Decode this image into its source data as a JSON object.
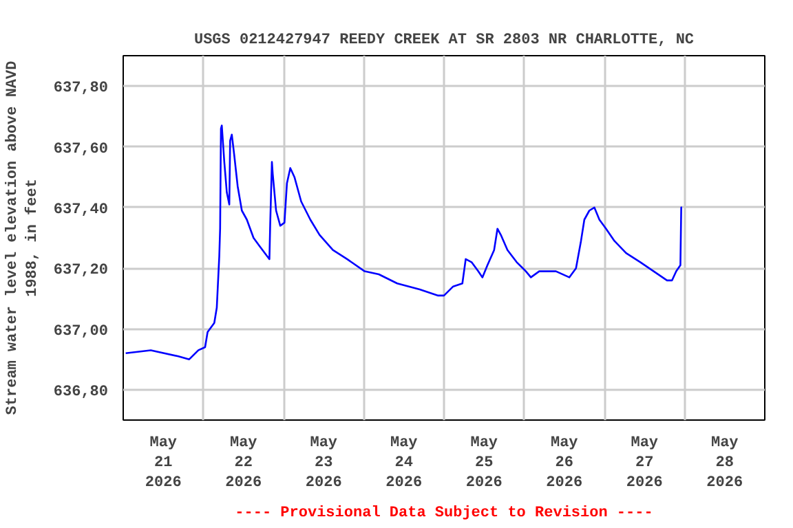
{
  "chart_data": {
    "type": "line",
    "title": "USGS 0212427947 REEDY CREEK AT SR 2803 NR CHARLOTTE, NC",
    "ylabel": "Stream water level elevation above NAVD 1988, in feet",
    "annotations": [
      "---- Provisional Data Subject to Revision ----"
    ],
    "series": [
      {
        "color": "#0000ff",
        "x": [
          "2026-05-21T00:45",
          "2026-05-21T08:15",
          "2026-05-21T16:30",
          "2026-05-21T19:45",
          "2026-05-21T22:30",
          "2026-05-22T00:30",
          "2026-05-22T01:15",
          "2026-05-22T03:15",
          "2026-05-22T04:00",
          "2026-05-22T04:45",
          "2026-05-22T05:00",
          "2026-05-22T05:15",
          "2026-05-22T05:30",
          "2026-05-22T06:15",
          "2026-05-22T07:00",
          "2026-05-22T07:45",
          "2026-05-22T08:00",
          "2026-05-22T08:30",
          "2026-05-22T09:15",
          "2026-05-22T10:15",
          "2026-05-22T11:30",
          "2026-05-22T13:00",
          "2026-05-22T15:00",
          "2026-05-22T17:00",
          "2026-05-22T19:45",
          "2026-05-22T20:00",
          "2026-05-22T20:30",
          "2026-05-22T20:45",
          "2026-05-22T21:45",
          "2026-05-22T23:00",
          "2026-05-23T00:15",
          "2026-05-23T01:00",
          "2026-05-23T02:00",
          "2026-05-23T03:15",
          "2026-05-23T05:15",
          "2026-05-23T08:00",
          "2026-05-23T10:45",
          "2026-05-23T14:45",
          "2026-05-23T19:00",
          "2026-05-24T00:15",
          "2026-05-24T04:30",
          "2026-05-24T10:00",
          "2026-05-24T16:45",
          "2026-05-24T22:15",
          "2026-05-25T00:00",
          "2026-05-25T02:45",
          "2026-05-25T05:30",
          "2026-05-25T06:30",
          "2026-05-25T08:15",
          "2026-05-25T10:15",
          "2026-05-25T11:30",
          "2026-05-25T13:00",
          "2026-05-25T15:00",
          "2026-05-25T16:00",
          "2026-05-25T17:00",
          "2026-05-25T19:00",
          "2026-05-25T21:45",
          "2026-05-26T00:30",
          "2026-05-26T02:00",
          "2026-05-26T04:30",
          "2026-05-26T09:30",
          "2026-05-26T13:30",
          "2026-05-26T15:30",
          "2026-05-26T17:00",
          "2026-05-26T18:00",
          "2026-05-26T19:30",
          "2026-05-26T21:00",
          "2026-05-26T22:30",
          "2026-05-27T00:30",
          "2026-05-27T03:00",
          "2026-05-27T06:30",
          "2026-05-27T10:45",
          "2026-05-27T14:45",
          "2026-05-27T18:45",
          "2026-05-27T20:15",
          "2026-05-27T21:30",
          "2026-05-27T22:45",
          "2026-05-27T23:00",
          "2026-05-27T23:15"
        ],
        "values": [
          636.92,
          636.93,
          636.91,
          636.9,
          636.93,
          636.94,
          636.99,
          637.02,
          637.07,
          637.24,
          637.33,
          637.66,
          637.67,
          637.55,
          637.45,
          637.41,
          637.62,
          637.64,
          637.57,
          637.47,
          637.39,
          637.36,
          637.3,
          637.27,
          637.23,
          637.35,
          637.55,
          637.51,
          637.39,
          637.34,
          637.35,
          637.48,
          637.53,
          637.5,
          637.42,
          637.36,
          637.31,
          637.26,
          637.23,
          637.19,
          637.18,
          637.15,
          637.13,
          637.11,
          637.11,
          637.14,
          637.15,
          637.23,
          637.22,
          637.19,
          637.17,
          637.21,
          637.26,
          637.33,
          637.31,
          637.26,
          637.22,
          637.19,
          637.17,
          637.19,
          637.19,
          637.17,
          637.2,
          637.29,
          637.36,
          637.39,
          637.4,
          637.36,
          637.33,
          637.29,
          637.25,
          637.22,
          637.19,
          637.16,
          637.16,
          637.19,
          637.21,
          637.4,
          637.4
        ]
      }
    ],
    "xlim": [
      "2026-05-21T00:00",
      "2026-05-29T00:00"
    ],
    "xticks": [
      {
        "value": "2026-05-21T12:00",
        "label": "May\n21\n2026"
      },
      {
        "value": "2026-05-22T12:00",
        "label": "May\n22\n2026"
      },
      {
        "value": "2026-05-23T12:00",
        "label": "May\n23\n2026"
      },
      {
        "value": "2026-05-24T12:00",
        "label": "May\n24\n2026"
      },
      {
        "value": "2026-05-25T12:00",
        "label": "May\n25\n2026"
      },
      {
        "value": "2026-05-26T12:00",
        "label": "May\n26\n2026"
      },
      {
        "value": "2026-05-27T12:00",
        "label": "May\n27\n2026"
      },
      {
        "value": "2026-05-28T12:00",
        "label": "May\n28\n2026"
      },
      {
        "value": "2026-05-22T00:00",
        "label": null
      },
      {
        "value": "2026-05-23T00:00",
        "label": null
      },
      {
        "value": "2026-05-24T00:00",
        "label": null
      },
      {
        "value": "2026-05-25T00:00",
        "label": null
      },
      {
        "value": "2026-05-26T00:00",
        "label": null
      },
      {
        "value": "2026-05-27T00:00",
        "label": null
      },
      {
        "value": "2026-05-28T00:00",
        "label": null
      }
    ],
    "ylim": [
      636.7,
      637.9
    ],
    "yticks": [
      {
        "value": 636.8,
        "label": "636,80"
      },
      {
        "value": 637.0,
        "label": "637,00"
      },
      {
        "value": 637.2,
        "label": "637,20"
      },
      {
        "value": 637.4,
        "label": "637,40"
      },
      {
        "value": 637.6,
        "label": "637,60"
      },
      {
        "value": 637.8,
        "label": "637,80"
      }
    ],
    "grid": true,
    "marker": "none",
    "line_style": "solid"
  }
}
